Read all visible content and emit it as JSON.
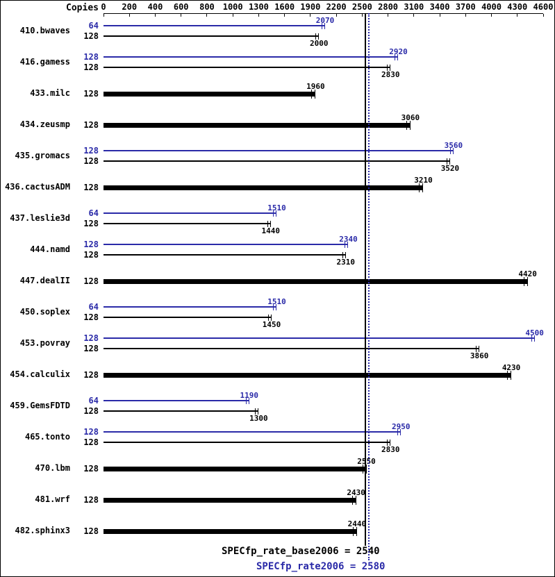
{
  "chart_data": {
    "type": "bar",
    "orientation": "horizontal",
    "copies_header": "Copies",
    "colors": {
      "peak": "#2a2aa8",
      "base": "#000000",
      "background": "#ffffff"
    },
    "x_axis": {
      "ticks": [
        0,
        200,
        400,
        600,
        800,
        1000,
        1300,
        1600,
        1900,
        2200,
        2500,
        2800,
        3100,
        3400,
        3700,
        4000,
        4300,
        4600
      ],
      "segments": [
        {
          "from": 0,
          "to": 1000,
          "per_tick": 200
        },
        {
          "from": 1000,
          "to": 4600,
          "per_tick": 300
        }
      ]
    },
    "benchmarks": [
      {
        "name": "410.bwaves",
        "peak": {
          "copies": 64,
          "value": 2070
        },
        "base": {
          "copies": 128,
          "value": 2000
        }
      },
      {
        "name": "416.gamess",
        "peak": {
          "copies": 128,
          "value": 2920
        },
        "base": {
          "copies": 128,
          "value": 2830
        }
      },
      {
        "name": "433.milc",
        "base": {
          "copies": 128,
          "value": 1960
        }
      },
      {
        "name": "434.zeusmp",
        "base": {
          "copies": 128,
          "value": 3060
        }
      },
      {
        "name": "435.gromacs",
        "peak": {
          "copies": 128,
          "value": 3560
        },
        "base": {
          "copies": 128,
          "value": 3520
        }
      },
      {
        "name": "436.cactusADM",
        "base": {
          "copies": 128,
          "value": 3210
        }
      },
      {
        "name": "437.leslie3d",
        "peak": {
          "copies": 64,
          "value": 1510
        },
        "base": {
          "copies": 128,
          "value": 1440
        }
      },
      {
        "name": "444.namd",
        "peak": {
          "copies": 128,
          "value": 2340
        },
        "base": {
          "copies": 128,
          "value": 2310
        }
      },
      {
        "name": "447.dealII",
        "base": {
          "copies": 128,
          "value": 4420
        }
      },
      {
        "name": "450.soplex",
        "peak": {
          "copies": 64,
          "value": 1510
        },
        "base": {
          "copies": 128,
          "value": 1450
        }
      },
      {
        "name": "453.povray",
        "peak": {
          "copies": 128,
          "value": 4500
        },
        "base": {
          "copies": 128,
          "value": 3860
        }
      },
      {
        "name": "454.calculix",
        "base": {
          "copies": 128,
          "value": 4230
        }
      },
      {
        "name": "459.GemsFDTD",
        "peak": {
          "copies": 64,
          "value": 1190
        },
        "base": {
          "copies": 128,
          "value": 1300
        }
      },
      {
        "name": "465.tonto",
        "peak": {
          "copies": 128,
          "value": 2950
        },
        "base": {
          "copies": 128,
          "value": 2830
        }
      },
      {
        "name": "470.lbm",
        "base": {
          "copies": 128,
          "value": 2550
        }
      },
      {
        "name": "481.wrf",
        "base": {
          "copies": 128,
          "value": 2430
        }
      },
      {
        "name": "482.sphinx3",
        "base": {
          "copies": 128,
          "value": 2440
        }
      }
    ],
    "reference_lines": [
      {
        "name": "base",
        "label": "SPECfp_rate_base2006 = 2540",
        "value": 2540,
        "style": "solid",
        "color": "#000000"
      },
      {
        "name": "peak",
        "label": "SPECfp_rate2006 = 2580",
        "value": 2580,
        "style": "dotted",
        "color": "#2a2aa8"
      }
    ]
  }
}
